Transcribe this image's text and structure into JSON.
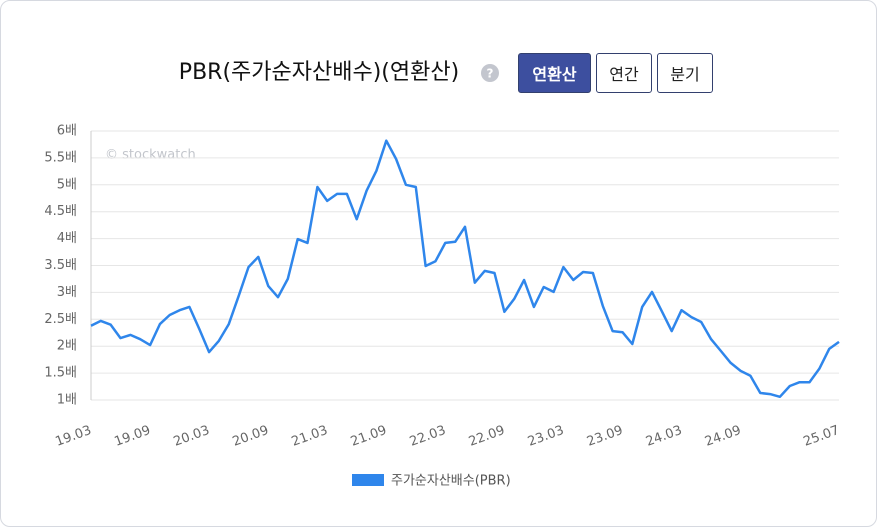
{
  "chart_data": {
    "type": "line",
    "title": "PBR(주가순자산배수)(연환산)",
    "help_icon": "?",
    "toggle_options": [
      "연환산",
      "연간",
      "분기"
    ],
    "active_option": 0,
    "watermark": "© stockwatch",
    "categories": [
      "19.03",
      null,
      null,
      null,
      null,
      null,
      "19.09",
      null,
      null,
      null,
      null,
      null,
      "20.03",
      null,
      null,
      null,
      null,
      null,
      "20.09",
      null,
      null,
      null,
      null,
      null,
      "21.03",
      null,
      null,
      null,
      null,
      null,
      "21.09",
      null,
      null,
      null,
      null,
      null,
      "22.03",
      null,
      null,
      null,
      null,
      null,
      "22.09",
      null,
      null,
      null,
      null,
      null,
      "23.03",
      null,
      null,
      null,
      null,
      null,
      "23.09",
      null,
      null,
      null,
      null,
      null,
      "24.03",
      null,
      null,
      null,
      null,
      null,
      "24.09",
      null,
      null,
      null,
      null,
      null,
      null,
      null,
      null,
      null,
      "25.07"
    ],
    "series": [
      {
        "name": "주가순자산배수(PBR)",
        "color": "#2f86eb",
        "values": [
          2.38,
          2.47,
          2.4,
          2.15,
          2.21,
          2.13,
          2.02,
          2.41,
          2.58,
          2.67,
          2.73,
          2.32,
          1.89,
          2.1,
          2.41,
          2.93,
          3.47,
          3.66,
          3.12,
          2.91,
          3.25,
          3.99,
          3.92,
          4.96,
          4.7,
          4.83,
          4.83,
          4.36,
          4.89,
          5.26,
          5.82,
          5.48,
          5.0,
          4.96,
          3.49,
          3.58,
          3.92,
          3.94,
          4.22,
          3.18,
          3.4,
          3.36,
          2.64,
          2.88,
          3.23,
          2.73,
          3.1,
          3.01,
          3.47,
          3.23,
          3.38,
          3.36,
          2.75,
          2.28,
          2.26,
          2.04,
          2.73,
          3.01,
          2.65,
          2.28,
          2.67,
          2.54,
          2.45,
          2.13,
          1.91,
          1.69,
          1.54,
          1.45,
          1.13,
          1.11,
          1.06,
          1.26,
          1.33,
          1.33,
          1.58,
          1.95,
          2.08
        ]
      }
    ],
    "ylim": [
      1,
      6
    ],
    "yticks": [
      {
        "value": 1,
        "label": "1배"
      },
      {
        "value": 1.5,
        "label": "1.5배"
      },
      {
        "value": 2,
        "label": "2배"
      },
      {
        "value": 2.5,
        "label": "2.5배"
      },
      {
        "value": 3,
        "label": "3배"
      },
      {
        "value": 3.5,
        "label": "3.5배"
      },
      {
        "value": 4,
        "label": "4배"
      },
      {
        "value": 4.5,
        "label": "4.5배"
      },
      {
        "value": 5,
        "label": "5배"
      },
      {
        "value": 5.5,
        "label": "5.5배"
      },
      {
        "value": 6,
        "label": "6배"
      }
    ],
    "grid": true
  }
}
